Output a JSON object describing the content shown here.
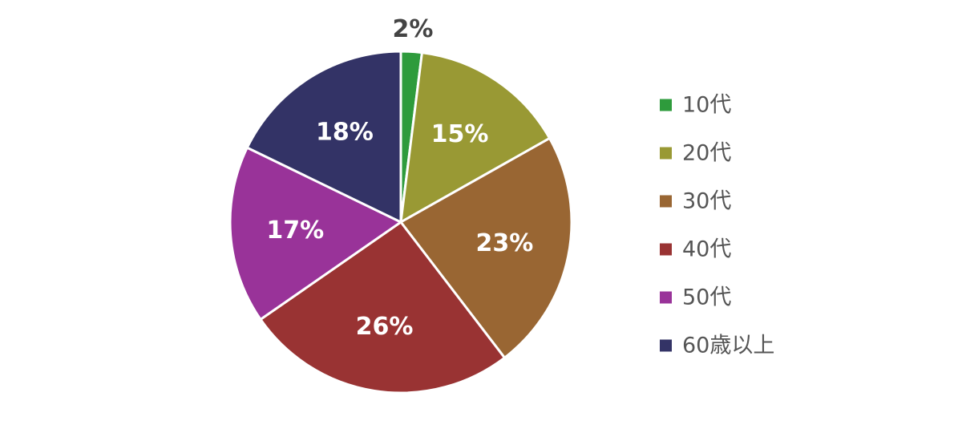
{
  "chart_data": {
    "type": "pie",
    "title": "",
    "legend_position": "right",
    "slices": [
      {
        "label": "10代",
        "value": 2,
        "display": "2%",
        "color": "#2e9b3c",
        "label_color": "#444444"
      },
      {
        "label": "20代",
        "value": 15,
        "display": "15%",
        "color": "#999934",
        "label_color": "#ffffff"
      },
      {
        "label": "30代",
        "value": 23,
        "display": "23%",
        "color": "#996633",
        "label_color": "#ffffff"
      },
      {
        "label": "40代",
        "value": 26,
        "display": "26%",
        "color": "#993333",
        "label_color": "#ffffff"
      },
      {
        "label": "50代",
        "value": 17,
        "display": "17%",
        "color": "#993399",
        "label_color": "#ffffff"
      },
      {
        "label": "60歳以上",
        "value": 18,
        "display": "18%",
        "color": "#333366",
        "label_color": "#ffffff"
      }
    ]
  }
}
